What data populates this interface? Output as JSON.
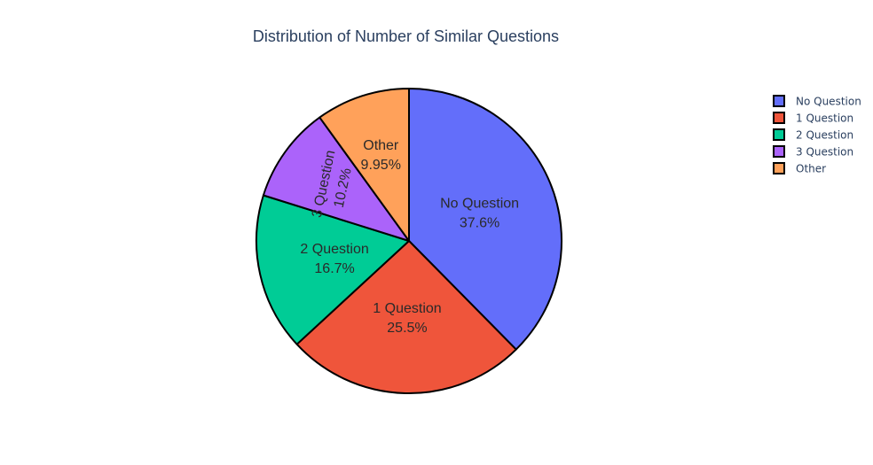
{
  "chart_data": {
    "type": "pie",
    "title": "Distribution of Number of Similar Questions",
    "slices": [
      {
        "label": "No Question",
        "percent_label": "37.6%",
        "value": 37.6,
        "color": "#636efa"
      },
      {
        "label": "1 Question",
        "percent_label": "25.5%",
        "value": 25.5,
        "color": "#ef553b"
      },
      {
        "label": "2 Question",
        "percent_label": "16.7%",
        "value": 16.7,
        "color": "#00cc96"
      },
      {
        "label": "3 Question",
        "percent_label": "10.2%",
        "value": 10.2,
        "color": "#ab63fa"
      },
      {
        "label": "Other",
        "percent_label": "9.95%",
        "value": 9.95,
        "color": "#ffa15a"
      }
    ],
    "legend_placement": "top-right",
    "slice_border_color": "#000000"
  }
}
